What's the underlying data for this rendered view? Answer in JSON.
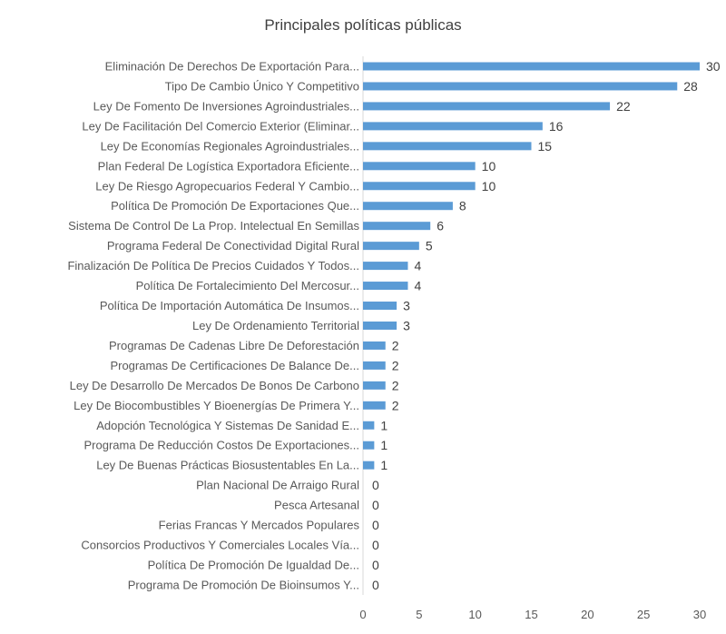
{
  "chart_data": {
    "type": "bar",
    "orientation": "horizontal",
    "title": "Principales políticas públicas",
    "xlabel": "",
    "ylabel": "",
    "xlim": [
      0,
      30
    ],
    "xticks": [
      0,
      5,
      10,
      15,
      20,
      25,
      30
    ],
    "grid": false,
    "bar_color": "#5b9bd5",
    "categories": [
      "Eliminación De Derechos De Exportación Para...",
      "Tipo De Cambio Único Y Competitivo",
      "Ley De Fomento De Inversiones Agroindustriales...",
      "Ley De Facilitación Del Comercio Exterior (Eliminar...",
      "Ley De Economías Regionales Agroindustriales...",
      "Plan Federal De Logística Exportadora Eficiente...",
      "Ley De Riesgo Agropecuarios Federal Y Cambio...",
      "Política De Promoción De Exportaciones Que...",
      "Sistema De Control De La Prop. Intelectual En Semillas",
      "Programa Federal De Conectividad Digital Rural",
      "Finalización De Política De Precios Cuidados Y Todos...",
      "Política De Fortalecimiento Del Mercosur...",
      "Política De Importación Automática De Insumos...",
      "Ley De Ordenamiento Territorial",
      "Programas De Cadenas Libre De Deforestación",
      "Programas De Certificaciones De Balance De...",
      "Ley De Desarrollo De Mercados De Bonos De Carbono",
      "Ley De Biocombustibles Y Bioenergías De Primera Y...",
      "Adopción Tecnológica Y Sistemas De Sanidad E...",
      "Programa De Reducción Costos De Exportaciones...",
      "Ley De Buenas Prácticas Biosustentables En La...",
      "Plan Nacional De Arraigo Rural",
      "Pesca Artesanal",
      "Ferias Francas Y Mercados Populares",
      "Consorcios Productivos Y Comerciales Locales Vía...",
      "Política De Promoción De Igualdad De...",
      "Programa De Promoción De Bioinsumos Y..."
    ],
    "values": [
      30,
      28,
      22,
      16,
      15,
      10,
      10,
      8,
      6,
      5,
      4,
      4,
      3,
      3,
      2,
      2,
      2,
      2,
      1,
      1,
      1,
      0,
      0,
      0,
      0,
      0,
      0
    ]
  }
}
